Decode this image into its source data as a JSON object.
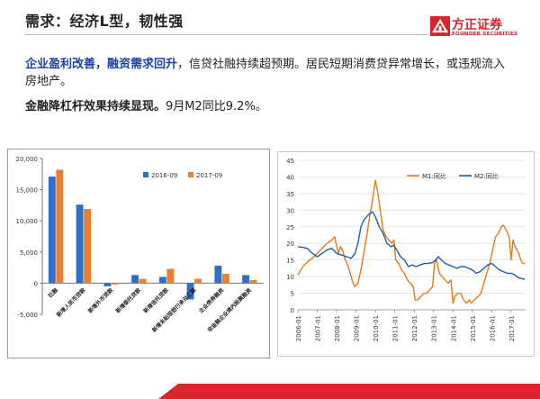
{
  "slide": {
    "title": "需求：经济L型，韧性强",
    "logo": {
      "name_cn": "方正证券",
      "name_en": "FOUNDER SECURITIES"
    },
    "para1": {
      "emph1": "企业盈利改善",
      "sep": "，",
      "emph2": "融资需求回升",
      "rest": "，信贷社融持续超预期。居民短期消费贷异常增长，或违规流入房地产。"
    },
    "para2": {
      "emph": "金融降杠杆效果持续显现。",
      "rest": "9月M2同比9.2%。"
    }
  },
  "chart_data": [
    {
      "type": "bar",
      "categories": [
        "社融",
        "新增人民币贷款",
        "新增外币贷款",
        "新增委托贷款",
        "新增信托贷款",
        "新增未贴现银行承兑汇票",
        "企业债券融资",
        "非金融企业境内股票融资"
      ],
      "series": [
        {
          "name": "2016-09",
          "color": "#2e6fc7",
          "values": [
            17100,
            12600,
            -500,
            1300,
            1000,
            -2600,
            2800,
            1300
          ]
        },
        {
          "name": "2017-09",
          "color": "#ed7d31",
          "values": [
            18200,
            11900,
            -200,
            700,
            2300,
            700,
            1500,
            500
          ]
        }
      ],
      "ylim": [
        -5000,
        20000
      ],
      "yticks": [
        "-5,000",
        "0",
        "5,000",
        "10,000",
        "15,000",
        "20,000"
      ],
      "ytick_values": [
        -5000,
        0,
        5000,
        10000,
        15000,
        20000
      ],
      "legend": "top-right",
      "grid": false
    },
    {
      "type": "line",
      "x_labels": [
        "2006-01",
        "2007-01",
        "2008-01",
        "2009-01",
        "2010-01",
        "2011-01",
        "2012-01",
        "2013-01",
        "2014-01",
        "2015-01",
        "2016-01",
        "2017-01"
      ],
      "xlim": [
        2006.0,
        2017.75
      ],
      "ylim": [
        0,
        45
      ],
      "yticks": [
        0,
        5,
        10,
        15,
        20,
        25,
        30,
        35,
        40,
        45
      ],
      "legend": "top-right",
      "grid": true,
      "series": [
        {
          "name": "M1:同比",
          "color": "#e07b1a",
          "points": [
            [
              2006.0,
              10.5
            ],
            [
              2006.25,
              13
            ],
            [
              2006.5,
              14.5
            ],
            [
              2006.75,
              15.5
            ],
            [
              2007.0,
              17
            ],
            [
              2007.25,
              18.5
            ],
            [
              2007.5,
              20
            ],
            [
              2007.75,
              21
            ],
            [
              2007.9,
              22
            ],
            [
              2008.0,
              19
            ],
            [
              2008.1,
              17
            ],
            [
              2008.2,
              19
            ],
            [
              2008.3,
              18
            ],
            [
              2008.45,
              15
            ],
            [
              2008.6,
              13
            ],
            [
              2008.75,
              10
            ],
            [
              2008.85,
              8
            ],
            [
              2008.95,
              7
            ],
            [
              2009.1,
              8
            ],
            [
              2009.25,
              12
            ],
            [
              2009.4,
              17
            ],
            [
              2009.55,
              22
            ],
            [
              2009.7,
              28
            ],
            [
              2009.85,
              33
            ],
            [
              2009.95,
              37
            ],
            [
              2010.0,
              39
            ],
            [
              2010.1,
              36
            ],
            [
              2010.25,
              30
            ],
            [
              2010.4,
              24
            ],
            [
              2010.55,
              22
            ],
            [
              2010.7,
              21
            ],
            [
              2010.85,
              20
            ],
            [
              2010.95,
              21
            ],
            [
              2011.05,
              15
            ],
            [
              2011.2,
              14
            ],
            [
              2011.35,
              12
            ],
            [
              2011.5,
              11
            ],
            [
              2011.65,
              9
            ],
            [
              2011.8,
              8
            ],
            [
              2011.95,
              7
            ],
            [
              2012.05,
              3
            ],
            [
              2012.2,
              3
            ],
            [
              2012.35,
              4
            ],
            [
              2012.5,
              5
            ],
            [
              2012.65,
              5
            ],
            [
              2012.8,
              6
            ],
            [
              2012.95,
              7
            ],
            [
              2013.05,
              14
            ],
            [
              2013.15,
              15
            ],
            [
              2013.3,
              11
            ],
            [
              2013.45,
              10
            ],
            [
              2013.6,
              9
            ],
            [
              2013.75,
              8
            ],
            [
              2013.9,
              9
            ],
            [
              2014.0,
              2
            ],
            [
              2014.1,
              4
            ],
            [
              2014.25,
              5
            ],
            [
              2014.4,
              5
            ],
            [
              2014.55,
              3
            ],
            [
              2014.7,
              2
            ],
            [
              2014.85,
              3
            ],
            [
              2014.95,
              2
            ],
            [
              2015.1,
              3
            ],
            [
              2015.3,
              4
            ],
            [
              2015.45,
              5
            ],
            [
              2015.6,
              8
            ],
            [
              2015.75,
              11
            ],
            [
              2015.9,
              14
            ],
            [
              2016.05,
              18
            ],
            [
              2016.2,
              22
            ],
            [
              2016.35,
              23
            ],
            [
              2016.5,
              25
            ],
            [
              2016.6,
              25.5
            ],
            [
              2016.75,
              24
            ],
            [
              2016.9,
              22
            ],
            [
              2017.0,
              15
            ],
            [
              2017.1,
              21
            ],
            [
              2017.2,
              19
            ],
            [
              2017.3,
              18
            ],
            [
              2017.4,
              17
            ],
            [
              2017.5,
              15
            ],
            [
              2017.6,
              14
            ],
            [
              2017.7,
              14
            ]
          ]
        },
        {
          "name": "M2:同比",
          "color": "#1f5fa8",
          "points": [
            [
              2006.0,
              19
            ],
            [
              2006.25,
              18.8
            ],
            [
              2006.5,
              18.4
            ],
            [
              2006.75,
              17
            ],
            [
              2007.0,
              16
            ],
            [
              2007.25,
              17
            ],
            [
              2007.5,
              18
            ],
            [
              2007.75,
              18.5
            ],
            [
              2008.0,
              17
            ],
            [
              2008.25,
              16.5
            ],
            [
              2008.5,
              16
            ],
            [
              2008.75,
              15.5
            ],
            [
              2008.95,
              17
            ],
            [
              2009.1,
              20
            ],
            [
              2009.25,
              25
            ],
            [
              2009.4,
              27
            ],
            [
              2009.55,
              28
            ],
            [
              2009.7,
              29
            ],
            [
              2009.85,
              29.5
            ],
            [
              2010.0,
              28
            ],
            [
              2010.2,
              25
            ],
            [
              2010.4,
              23
            ],
            [
              2010.6,
              20
            ],
            [
              2010.8,
              19
            ],
            [
              2010.95,
              19.5
            ],
            [
              2011.1,
              18
            ],
            [
              2011.3,
              16
            ],
            [
              2011.5,
              15
            ],
            [
              2011.7,
              13
            ],
            [
              2011.9,
              13.5
            ],
            [
              2012.1,
              13
            ],
            [
              2012.3,
              13.5
            ],
            [
              2012.5,
              13.9
            ],
            [
              2012.7,
              14
            ],
            [
              2012.95,
              14.2
            ],
            [
              2013.1,
              15
            ],
            [
              2013.25,
              16
            ],
            [
              2013.4,
              15
            ],
            [
              2013.6,
              14
            ],
            [
              2013.8,
              13.5
            ],
            [
              2014.0,
              13
            ],
            [
              2014.2,
              12.5
            ],
            [
              2014.4,
              13
            ],
            [
              2014.6,
              13
            ],
            [
              2014.8,
              12.5
            ],
            [
              2015.0,
              12
            ],
            [
              2015.2,
              11
            ],
            [
              2015.4,
              11.5
            ],
            [
              2015.6,
              12.5
            ],
            [
              2015.8,
              13.5
            ],
            [
              2016.0,
              14
            ],
            [
              2016.2,
              13
            ],
            [
              2016.4,
              12
            ],
            [
              2016.6,
              11.5
            ],
            [
              2016.8,
              11
            ],
            [
              2017.0,
              11
            ],
            [
              2017.2,
              10.5
            ],
            [
              2017.4,
              9.6
            ],
            [
              2017.55,
              9.4
            ],
            [
              2017.7,
              9.2
            ]
          ]
        }
      ]
    }
  ]
}
